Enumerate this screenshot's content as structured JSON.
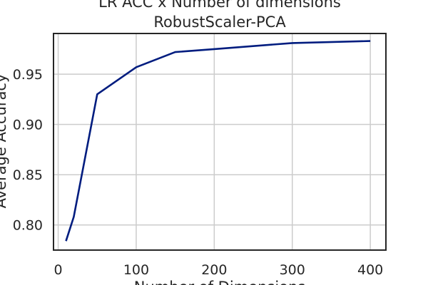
{
  "chart_data": {
    "type": "line",
    "title": "LR ACC x Number of dimensions",
    "subtitle": "RobustScaler-PCA",
    "xlabel": "Number of Dimensions",
    "ylabel": "Average Accuracy",
    "xlim": [
      -6,
      420
    ],
    "ylim": [
      0.775,
      0.9905
    ],
    "xticks": [
      0,
      100,
      200,
      300,
      400
    ],
    "yticks": [
      0.8,
      0.85,
      0.9,
      0.95
    ],
    "xtick_labels": [
      "0",
      "100",
      "200",
      "300",
      "400"
    ],
    "ytick_labels": [
      "0.80",
      "0.85",
      "0.90",
      "0.95"
    ],
    "grid": true,
    "series": [
      {
        "color": "#001c7f",
        "x": [
          10,
          20,
          50,
          100,
          150,
          200,
          300,
          400
        ],
        "y": [
          0.784,
          0.808,
          0.93,
          0.957,
          0.972,
          0.975,
          0.981,
          0.983
        ]
      }
    ]
  }
}
